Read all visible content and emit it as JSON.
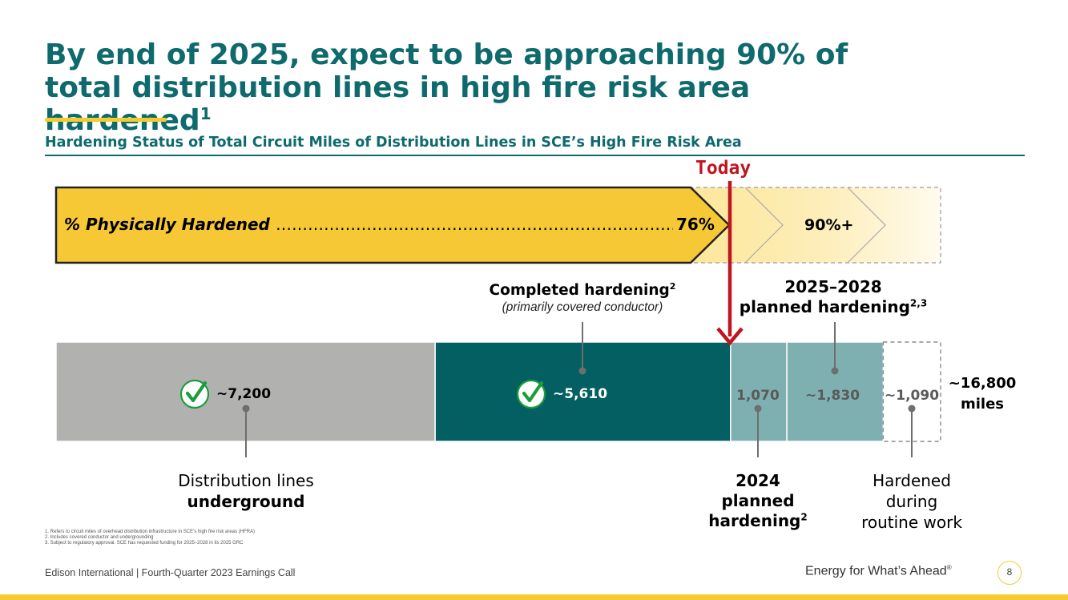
{
  "title": {
    "text": "By end of 2025, expect to be approaching 90% of total distribution lines in high fire risk area hardened",
    "superscript": "1"
  },
  "subtitle": "Hardening Status of Total Circuit Miles of Distribution Lines in SCE’s High Fire Risk Area",
  "today_label": "Today",
  "progress_arrow": {
    "label": "% Physically Hardened",
    "leader": "…………………………………………………………………………………",
    "current_value": "76%",
    "target_value": "90%+",
    "current_percent": 76,
    "target_percent": 90
  },
  "chart_data": {
    "type": "bar",
    "orientation": "horizontal-stacked",
    "title": "Hardening Status of Total Circuit Miles of Distribution Lines in SCE’s High Fire Risk Area",
    "unit": "miles",
    "segments": [
      {
        "label": "~7,200",
        "value": 7200,
        "color": "#b1b2b0",
        "text_color": "#000000",
        "checked": true
      },
      {
        "label": "~5,610",
        "value": 5610,
        "color": "#045f62",
        "text_color": "#ffffff",
        "checked": true
      },
      {
        "label": "1,070",
        "value": 1070,
        "color": "#7fb0b1",
        "text_color": "#5a5a5a",
        "checked": false
      },
      {
        "label": "~1,830",
        "value": 1830,
        "color": "#7fb0b1",
        "text_color": "#5a5a5a",
        "checked": false
      },
      {
        "label": "~1,090",
        "value": 1090,
        "color": "#ffffff",
        "text_color": "#5a5a5a",
        "checked": false,
        "dashed": true
      }
    ],
    "total": {
      "value": 16800,
      "label_line1": "~16,800",
      "label_line2": "miles"
    }
  },
  "callouts": {
    "completed": {
      "title": "Completed hardening",
      "sup": "2",
      "note": "(primarily covered conductor)"
    },
    "planned_2025_2028": {
      "line1": "2025–2028",
      "line2": "planned hardening",
      "sup": "2,3"
    },
    "underground": {
      "line1": "Distribution lines",
      "line2": "underground"
    },
    "planned_2024": {
      "line1": "2024",
      "line2": "planned",
      "line3": "hardening",
      "sup": "2"
    },
    "routine": {
      "line1": "Hardened",
      "line2": "during",
      "line3": "routine work"
    }
  },
  "footnotes": [
    "1.  Refers to circuit miles of overhead distribution infrastructure in SCE’s high fire risk areas (HFRA)",
    "2.  Includes covered conductor and undergrounding",
    "3.  Subject to regulatory approval. SCE has requested funding for 2025–2028 in its 2025 GRC"
  ],
  "footer": {
    "left": "Edison International |  Fourth-Quarter 2023 Earnings Call",
    "right": "Energy for What’s Ahead",
    "right_mark": "®",
    "page_number": "8"
  },
  "colors": {
    "brand_teal": "#0e6a6d",
    "accent_yellow": "#f5cb2e",
    "today_red": "#c0141e",
    "check_green": "#1a9e3c"
  }
}
